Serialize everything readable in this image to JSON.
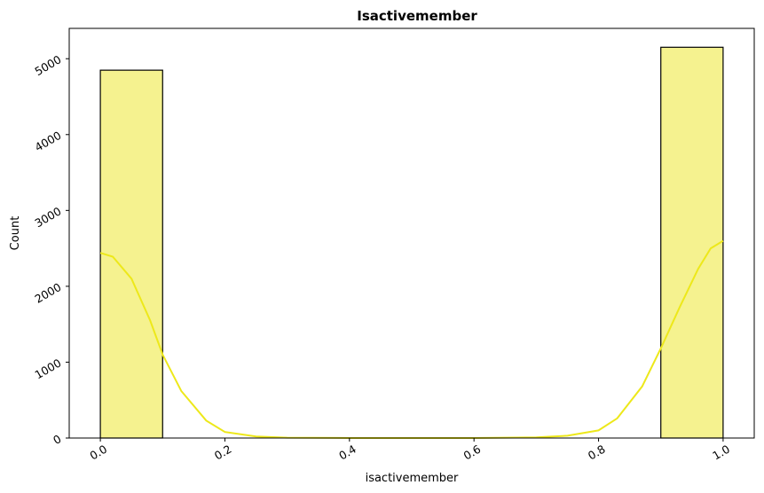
{
  "chart_data": {
    "type": "bar",
    "title": "Isactivemember",
    "xlabel": "isactivemember",
    "ylabel": "Count",
    "xlim": [
      -0.05,
      1.05
    ],
    "ylim": [
      0,
      5400
    ],
    "x_ticks": [
      0.0,
      0.2,
      0.4,
      0.6,
      0.8,
      1.0
    ],
    "x_tick_labels": [
      "0.0",
      "0.2",
      "0.4",
      "0.6",
      "0.8",
      "1.0"
    ],
    "y_ticks": [
      0,
      1000,
      2000,
      3000,
      4000,
      5000
    ],
    "y_tick_labels": [
      "0",
      "1000",
      "2000",
      "3000",
      "4000",
      "5000"
    ],
    "bins": [
      {
        "x0": 0.0,
        "x1": 0.1,
        "count": 4849
      },
      {
        "x0": 0.1,
        "x1": 0.2,
        "count": 0
      },
      {
        "x0": 0.2,
        "x1": 0.3,
        "count": 0
      },
      {
        "x0": 0.3,
        "x1": 0.4,
        "count": 0
      },
      {
        "x0": 0.4,
        "x1": 0.5,
        "count": 0
      },
      {
        "x0": 0.5,
        "x1": 0.6,
        "count": 0
      },
      {
        "x0": 0.6,
        "x1": 0.7,
        "count": 0
      },
      {
        "x0": 0.7,
        "x1": 0.8,
        "count": 0
      },
      {
        "x0": 0.8,
        "x1": 0.9,
        "count": 0
      },
      {
        "x0": 0.9,
        "x1": 1.0,
        "count": 5151
      }
    ],
    "kde": [
      [
        0.0,
        2440
      ],
      [
        0.02,
        2390
      ],
      [
        0.05,
        2100
      ],
      [
        0.08,
        1550
      ],
      [
        0.1,
        1100
      ],
      [
        0.13,
        620
      ],
      [
        0.17,
        230
      ],
      [
        0.2,
        80
      ],
      [
        0.25,
        20
      ],
      [
        0.3,
        5
      ],
      [
        0.4,
        0
      ],
      [
        0.5,
        0
      ],
      [
        0.6,
        0
      ],
      [
        0.7,
        8
      ],
      [
        0.75,
        30
      ],
      [
        0.8,
        100
      ],
      [
        0.83,
        260
      ],
      [
        0.87,
        680
      ],
      [
        0.9,
        1180
      ],
      [
        0.93,
        1720
      ],
      [
        0.96,
        2230
      ],
      [
        0.98,
        2500
      ],
      [
        1.0,
        2600
      ]
    ],
    "bar_color": "#f5f28f",
    "bar_edge_color": "#000000",
    "kde_color": "#ede81a",
    "grid": false
  }
}
